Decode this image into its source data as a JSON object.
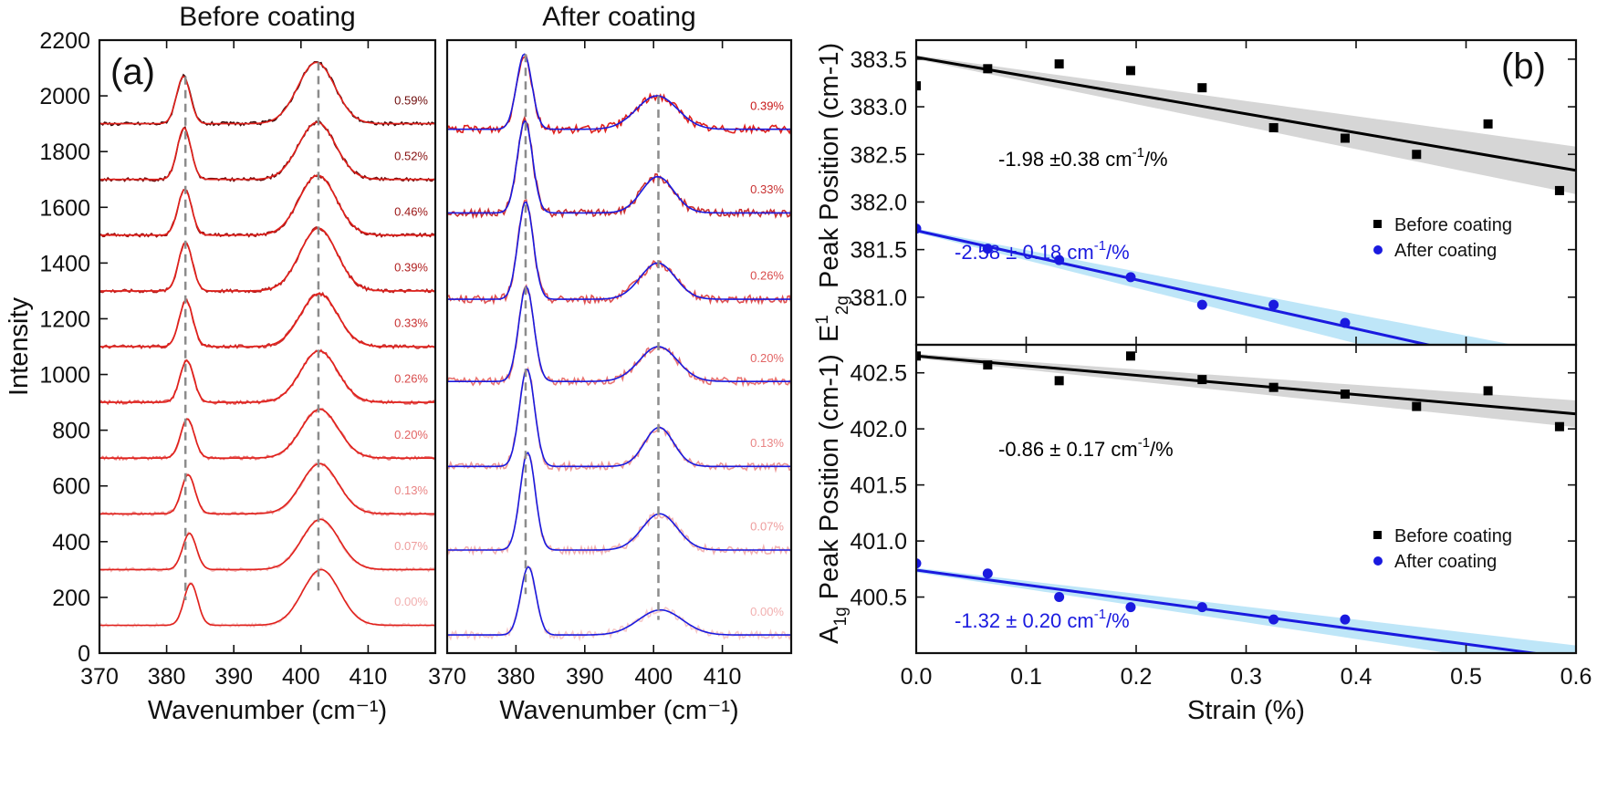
{
  "chart_data": [
    {
      "type": "line",
      "panel_tag": "(a)",
      "title": "Before coating",
      "xlabel": "Wavenumber (cm⁻¹)",
      "ylabel": "Intensity",
      "xlim": [
        370,
        420
      ],
      "ylim": [
        0,
        2200
      ],
      "xticks": [
        "370",
        "380",
        "390",
        "400",
        "410"
      ],
      "yticks": [
        "0",
        "200",
        "400",
        "600",
        "800",
        "1000",
        "1200",
        "1400",
        "1600",
        "1800",
        "2000",
        "2200"
      ],
      "peak_markers_cm1": [
        382.8,
        402.6
      ],
      "fit_color": "#e0201b",
      "traces": [
        {
          "strain": "0.00%",
          "baseline": 100,
          "peak1_pos": 383.6,
          "peak1_height": 150,
          "peak1_fwhm": 2.4,
          "peak2_pos": 403.0,
          "peak2_height": 200,
          "peak2_fwhm": 6.5,
          "data_color": "#f6c9c9",
          "label_color": "#f2b0b0"
        },
        {
          "strain": "0.07%",
          "baseline": 300,
          "peak1_pos": 383.4,
          "peak1_height": 130,
          "peak1_fwhm": 2.4,
          "peak2_pos": 402.9,
          "peak2_height": 180,
          "peak2_fwhm": 6.5,
          "data_color": "#f2b2b2",
          "label_color": "#ee9c9c"
        },
        {
          "strain": "0.13%",
          "baseline": 500,
          "peak1_pos": 383.2,
          "peak1_height": 140,
          "peak1_fwhm": 2.4,
          "peak2_pos": 402.8,
          "peak2_height": 180,
          "peak2_fwhm": 6.5,
          "data_color": "#ed9696",
          "label_color": "#e98484"
        },
        {
          "strain": "0.20%",
          "baseline": 700,
          "peak1_pos": 383.1,
          "peak1_height": 140,
          "peak1_fwhm": 2.4,
          "peak2_pos": 402.8,
          "peak2_height": 175,
          "peak2_fwhm": 6.5,
          "data_color": "#e87373",
          "label_color": "#e26464"
        },
        {
          "strain": "0.26%",
          "baseline": 900,
          "peak1_pos": 383.0,
          "peak1_height": 150,
          "peak1_fwhm": 2.4,
          "peak2_pos": 402.7,
          "peak2_height": 185,
          "peak2_fwhm": 6.5,
          "data_color": "#e05050",
          "label_color": "#d84a4a"
        },
        {
          "strain": "0.33%",
          "baseline": 1100,
          "peak1_pos": 382.9,
          "peak1_height": 165,
          "peak1_fwhm": 2.4,
          "peak2_pos": 402.7,
          "peak2_height": 190,
          "peak2_fwhm": 6.5,
          "data_color": "#cc3030",
          "label_color": "#c83030"
        },
        {
          "strain": "0.39%",
          "baseline": 1300,
          "peak1_pos": 382.8,
          "peak1_height": 175,
          "peak1_fwhm": 2.4,
          "peak2_pos": 402.6,
          "peak2_height": 225,
          "peak2_fwhm": 6.5,
          "data_color": "#b31e1e",
          "label_color": "#b02020"
        },
        {
          "strain": "0.46%",
          "baseline": 1500,
          "peak1_pos": 382.7,
          "peak1_height": 165,
          "peak1_fwhm": 2.4,
          "peak2_pos": 402.5,
          "peak2_height": 215,
          "peak2_fwhm": 6.5,
          "data_color": "#9a1414",
          "label_color": "#9a1414"
        },
        {
          "strain": "0.52%",
          "baseline": 1700,
          "peak1_pos": 382.6,
          "peak1_height": 185,
          "peak1_fwhm": 2.4,
          "peak2_pos": 402.4,
          "peak2_height": 205,
          "peak2_fwhm": 6.5,
          "data_color": "#6e0c0c",
          "label_color": "#861010"
        },
        {
          "strain": "0.59%",
          "baseline": 1900,
          "peak1_pos": 382.5,
          "peak1_height": 170,
          "peak1_fwhm": 2.4,
          "peak2_pos": 402.3,
          "peak2_height": 220,
          "peak2_fwhm": 6.5,
          "data_color": "#3a0606",
          "label_color": "#6e0c0c"
        }
      ]
    },
    {
      "type": "line",
      "title": "After coating",
      "xlabel": "Wavenumber (cm⁻¹)",
      "xlim": [
        370,
        420
      ],
      "xticks": [
        "370",
        "380",
        "390",
        "400",
        "410"
      ],
      "peak_markers_cm1": [
        381.4,
        400.7
      ],
      "fit_color": "#1a1adf",
      "traces": [
        {
          "strain": "0.00%",
          "baseline": 65,
          "peak1_pos": 381.8,
          "peak1_height": 245,
          "peak1_fwhm": 2.6,
          "peak2_pos": 401.0,
          "peak2_height": 90,
          "peak2_fwhm": 7.5,
          "data_color": "#f6c9c9",
          "label_color": "#f2b0b0"
        },
        {
          "strain": "0.07%",
          "baseline": 370,
          "peak1_pos": 381.7,
          "peak1_height": 350,
          "peak1_fwhm": 2.6,
          "peak2_pos": 400.9,
          "peak2_height": 130,
          "peak2_fwhm": 6.0,
          "data_color": "#f2b2b2",
          "label_color": "#ee9c9c"
        },
        {
          "strain": "0.13%",
          "baseline": 670,
          "peak1_pos": 381.6,
          "peak1_height": 350,
          "peak1_fwhm": 2.6,
          "peak2_pos": 400.8,
          "peak2_height": 140,
          "peak2_fwhm": 5.0,
          "data_color": "#ed9696",
          "label_color": "#e98484"
        },
        {
          "strain": "0.20%",
          "baseline": 975,
          "peak1_pos": 381.5,
          "peak1_height": 340,
          "peak1_fwhm": 2.6,
          "peak2_pos": 400.7,
          "peak2_height": 125,
          "peak2_fwhm": 6.5,
          "data_color": "#e87373",
          "label_color": "#e26464"
        },
        {
          "strain": "0.26%",
          "baseline": 1270,
          "peak1_pos": 381.4,
          "peak1_height": 350,
          "peak1_fwhm": 2.6,
          "peak2_pos": 400.6,
          "peak2_height": 130,
          "peak2_fwhm": 6.0,
          "data_color": "#e05050",
          "label_color": "#d84a4a"
        },
        {
          "strain": "0.33%",
          "baseline": 1580,
          "peak1_pos": 381.3,
          "peak1_height": 330,
          "peak1_fwhm": 2.6,
          "peak2_pos": 400.6,
          "peak2_height": 130,
          "peak2_fwhm": 5.5,
          "data_color": "#cc3030",
          "label_color": "#c83030"
        },
        {
          "strain": "0.39%",
          "baseline": 1880,
          "peak1_pos": 381.2,
          "peak1_height": 270,
          "peak1_fwhm": 2.6,
          "peak2_pos": 400.5,
          "peak2_height": 120,
          "peak2_fwhm": 7.0,
          "data_color": "#e0201b",
          "label_color": "#c81818"
        }
      ]
    },
    {
      "type": "scatter",
      "panel_tag": "(b)",
      "xlabel": "Strain (%)",
      "ylabel_main": "E",
      "ylabel_sup": "1",
      "ylabel_sub": "2g",
      "ylabel_rest": " Peak Position (cm-1)",
      "xlim": [
        0,
        0.6
      ],
      "ylim": [
        380.5,
        383.7
      ],
      "yticks": [
        "381.0",
        "381.5",
        "382.0",
        "382.5",
        "383.0",
        "383.5"
      ],
      "legend": [
        "Before coating",
        "After coating"
      ],
      "legend_position": "right",
      "series": [
        {
          "name": "Before coating",
          "color": "#000000",
          "marker": "square",
          "x": [
            0.0,
            0.065,
            0.13,
            0.195,
            0.26,
            0.325,
            0.39,
            0.455,
            0.52,
            0.585
          ],
          "y": [
            383.22,
            383.4,
            383.45,
            383.38,
            383.2,
            382.78,
            382.67,
            382.5,
            382.82,
            382.12
          ],
          "fit_intercept": 383.52,
          "fit_slope": -1.98,
          "band_halfwidth": [
            0.02,
            0.25
          ]
        },
        {
          "name": "After coating",
          "color": "#1a1adf",
          "marker": "circle",
          "x": [
            0.0,
            0.065,
            0.13,
            0.195,
            0.26,
            0.325,
            0.39
          ],
          "y": [
            381.72,
            381.51,
            381.39,
            381.21,
            380.92,
            380.92,
            380.73
          ],
          "fit_intercept": 381.7,
          "fit_slope": -2.58,
          "band_halfwidth": [
            0.02,
            0.22
          ]
        }
      ],
      "annotations": [
        {
          "text_main": "-1.98 ±0.38 cm",
          "sup": "-1",
          "tail": "/%",
          "color": "#000000"
        },
        {
          "text_main": "-2.58 ± 0.18 cm",
          "sup": "-1",
          "tail": "/%",
          "color": "#1a1adf"
        }
      ]
    },
    {
      "type": "scatter",
      "xlabel": "Strain (%)",
      "ylabel_main": "A",
      "ylabel_sub": "1g",
      "ylabel_rest": " Peak Position (cm-1)",
      "xlim": [
        0,
        0.6
      ],
      "ylim": [
        400.0,
        402.75
      ],
      "xticks": [
        "0.0",
        "0.1",
        "0.2",
        "0.3",
        "0.4",
        "0.5",
        "0.6"
      ],
      "yticks": [
        "400.5",
        "401.0",
        "401.5",
        "402.0",
        "402.5"
      ],
      "legend": [
        "Before coating",
        "After coating"
      ],
      "legend_position": "right",
      "series": [
        {
          "name": "Before coating",
          "color": "#000000",
          "marker": "square",
          "x": [
            0.0,
            0.065,
            0.13,
            0.195,
            0.26,
            0.325,
            0.39,
            0.455,
            0.52,
            0.585
          ],
          "y": [
            402.65,
            402.57,
            402.43,
            402.65,
            402.44,
            402.37,
            402.31,
            402.2,
            402.34,
            402.02
          ],
          "fit_intercept": 402.65,
          "fit_slope": -0.86,
          "band_halfwidth": [
            0.02,
            0.12
          ]
        },
        {
          "name": "After coating",
          "color": "#1a1adf",
          "marker": "circle",
          "x": [
            0.0,
            0.065,
            0.13,
            0.195,
            0.26,
            0.325,
            0.39
          ],
          "y": [
            400.8,
            400.71,
            400.5,
            400.41,
            400.41,
            400.3,
            400.3
          ],
          "fit_intercept": 400.74,
          "fit_slope": -1.32,
          "band_halfwidth": [
            0.02,
            0.12
          ]
        }
      ],
      "annotations": [
        {
          "text_main": "-0.86 ± 0.17 cm",
          "sup": "-1",
          "tail": "/%",
          "color": "#000000"
        },
        {
          "text_main": "-1.32 ± 0.20 cm",
          "sup": "-1",
          "tail": "/%",
          "color": "#1a1adf"
        }
      ]
    }
  ]
}
